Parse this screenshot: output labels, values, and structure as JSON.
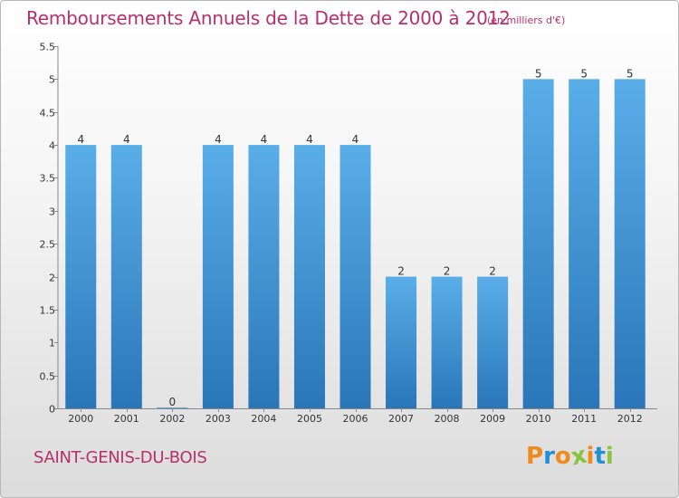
{
  "title": "Remboursements Annuels de la Dette de 2000 à 2012",
  "unit_note": "(en milliers d'€)",
  "city": "SAINT-GENIS-DU-BOIS",
  "logo": {
    "text": "Proxiti",
    "letter_colors": [
      "#f08a1c",
      "#1f8fd6",
      "#f08a1c",
      "#8ac43f",
      "#f08a1c",
      "#1f8fd6",
      "#8ac43f"
    ]
  },
  "colors": {
    "title": "#b8306a",
    "bar_light": "#5aaee8",
    "bar_dark": "#2a76b8"
  },
  "chart_data": {
    "type": "bar",
    "categories": [
      "2000",
      "2001",
      "2002",
      "2003",
      "2004",
      "2005",
      "2006",
      "2007",
      "2008",
      "2009",
      "2010",
      "2011",
      "2012"
    ],
    "values": [
      4,
      4,
      0,
      4,
      4,
      4,
      4,
      2,
      2,
      2,
      5,
      5,
      5
    ],
    "data_labels": [
      "4",
      "4",
      "0",
      "4",
      "4",
      "4",
      "4",
      "2",
      "2",
      "2",
      "5",
      "5",
      "5"
    ],
    "ylim": [
      0,
      5.5
    ],
    "yticks": [
      0,
      0.5,
      1,
      1.5,
      2,
      2.5,
      3,
      3.5,
      4,
      4.5,
      5,
      5.5
    ],
    "ytick_labels": [
      "0",
      "0.5",
      "1",
      "1.5",
      "2",
      "2.5",
      "3",
      "3.5",
      "4",
      "4.5",
      "5",
      "5.5"
    ],
    "grid": false
  }
}
